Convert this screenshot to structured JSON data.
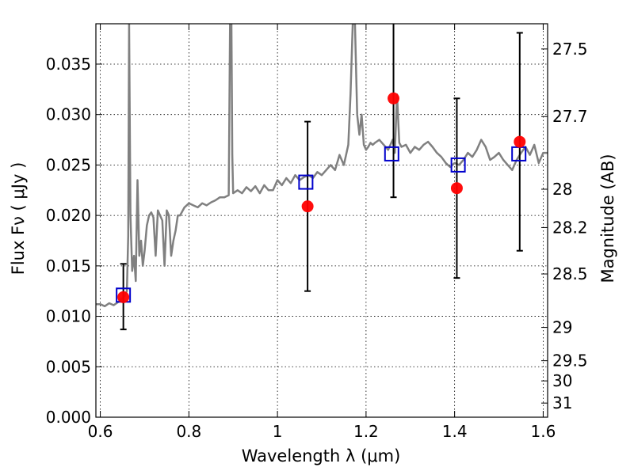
{
  "chart_data": {
    "type": "scatter",
    "title": "",
    "xlabel": "Wavelength  λ (μm)",
    "ylabel": "Flux  Fν  ( μJy )",
    "y2label": "Magnitude (AB)",
    "xlim": [
      0.59,
      1.61
    ],
    "ylim": [
      0.0,
      0.039
    ],
    "grid": true,
    "x_ticks": [
      0.6,
      0.8,
      1.0,
      1.2,
      1.4,
      1.6
    ],
    "x_tick_labels": [
      "0.6",
      "0.8",
      "1",
      "1.2",
      "1.4",
      "1.6"
    ],
    "y_ticks": [
      0.0,
      0.005,
      0.01,
      0.015,
      0.02,
      0.025,
      0.03,
      0.035
    ],
    "y_tick_labels": [
      "0.000",
      "0.005",
      "0.010",
      "0.015",
      "0.020",
      "0.025",
      "0.030",
      "0.035"
    ],
    "y2_ticks": [
      {
        "label": "27.5",
        "flux": 0.0365
      },
      {
        "label": "27.7",
        "flux": 0.0298
      },
      {
        "label": "28",
        "flux": 0.0226
      },
      {
        "label": "28.2",
        "flux": 0.0188
      },
      {
        "label": "28.5",
        "flux": 0.0142
      },
      {
        "label": "29",
        "flux": 0.0089
      },
      {
        "label": "29.5",
        "flux": 0.0056
      },
      {
        "label": "30",
        "flux": 0.0036
      },
      {
        "label": "31",
        "flux": 0.0014
      }
    ],
    "series": [
      {
        "kind": "line",
        "color": "#808080",
        "x": [
          0.59,
          0.6,
          0.61,
          0.62,
          0.63,
          0.64,
          0.65,
          0.655,
          0.66,
          0.663,
          0.665,
          0.668,
          0.672,
          0.676,
          0.68,
          0.684,
          0.688,
          0.692,
          0.696,
          0.7,
          0.705,
          0.71,
          0.715,
          0.72,
          0.725,
          0.73,
          0.735,
          0.74,
          0.745,
          0.75,
          0.755,
          0.76,
          0.765,
          0.77,
          0.775,
          0.78,
          0.79,
          0.8,
          0.81,
          0.82,
          0.83,
          0.84,
          0.85,
          0.86,
          0.87,
          0.88,
          0.89,
          0.893,
          0.896,
          0.898,
          0.9,
          0.91,
          0.92,
          0.93,
          0.94,
          0.95,
          0.96,
          0.97,
          0.98,
          0.99,
          1.0,
          1.01,
          1.02,
          1.03,
          1.04,
          1.05,
          1.06,
          1.07,
          1.08,
          1.09,
          1.1,
          1.11,
          1.12,
          1.13,
          1.14,
          1.15,
          1.16,
          1.165,
          1.17,
          1.175,
          1.18,
          1.185,
          1.19,
          1.195,
          1.2,
          1.205,
          1.21,
          1.215,
          1.22,
          1.23,
          1.24,
          1.25,
          1.26,
          1.265,
          1.27,
          1.275,
          1.28,
          1.29,
          1.3,
          1.31,
          1.32,
          1.33,
          1.34,
          1.35,
          1.36,
          1.37,
          1.38,
          1.39,
          1.4,
          1.41,
          1.42,
          1.43,
          1.44,
          1.45,
          1.46,
          1.47,
          1.48,
          1.49,
          1.5,
          1.51,
          1.52,
          1.53,
          1.54,
          1.55,
          1.56,
          1.57,
          1.58,
          1.59,
          1.6,
          1.61
        ],
        "y": [
          0.0112,
          0.0112,
          0.011,
          0.0113,
          0.0111,
          0.0114,
          0.0118,
          0.012,
          0.0125,
          0.018,
          0.039,
          0.02,
          0.0145,
          0.016,
          0.0135,
          0.0235,
          0.016,
          0.0175,
          0.015,
          0.0165,
          0.019,
          0.02,
          0.0203,
          0.0198,
          0.016,
          0.0205,
          0.02,
          0.0195,
          0.015,
          0.0205,
          0.02,
          0.016,
          0.0175,
          0.0185,
          0.02,
          0.02,
          0.0208,
          0.0212,
          0.021,
          0.0208,
          0.0212,
          0.021,
          0.0213,
          0.0215,
          0.0218,
          0.0218,
          0.022,
          0.039,
          0.039,
          0.026,
          0.0222,
          0.0225,
          0.0222,
          0.0228,
          0.0224,
          0.0229,
          0.0222,
          0.023,
          0.0225,
          0.0225,
          0.0235,
          0.023,
          0.0237,
          0.0232,
          0.024,
          0.0235,
          0.0238,
          0.024,
          0.0237,
          0.0243,
          0.024,
          0.0245,
          0.025,
          0.0245,
          0.026,
          0.025,
          0.027,
          0.032,
          0.039,
          0.039,
          0.03,
          0.028,
          0.03,
          0.027,
          0.0265,
          0.0268,
          0.0272,
          0.027,
          0.0272,
          0.0275,
          0.027,
          0.0265,
          0.0275,
          0.0262,
          0.032,
          0.0272,
          0.0268,
          0.027,
          0.0262,
          0.0268,
          0.0265,
          0.027,
          0.0273,
          0.0268,
          0.0262,
          0.0258,
          0.0252,
          0.0248,
          0.0252,
          0.025,
          0.0255,
          0.0262,
          0.0258,
          0.0265,
          0.0275,
          0.0268,
          0.0255,
          0.0258,
          0.0262,
          0.0255,
          0.025,
          0.0245,
          0.0255,
          0.0262,
          0.0268,
          0.026,
          0.027,
          0.0252,
          0.0262,
          0.0262
        ]
      },
      {
        "kind": "errorbar",
        "color": "#000000",
        "points": [
          {
            "x": 0.652,
            "low": 0.0087,
            "high": 0.0152
          },
          {
            "x": 1.068,
            "low": 0.0125,
            "high": 0.0293
          },
          {
            "x": 1.262,
            "low": 0.0218,
            "high": 0.04
          },
          {
            "x": 1.405,
            "low": 0.0138,
            "high": 0.0316
          },
          {
            "x": 1.547,
            "low": 0.0165,
            "high": 0.0381
          }
        ]
      },
      {
        "kind": "square-markers",
        "color": "#0000cc",
        "x": [
          0.652,
          1.064,
          1.258,
          1.408,
          1.545
        ],
        "y": [
          0.0121,
          0.0233,
          0.0261,
          0.025,
          0.0261
        ]
      },
      {
        "kind": "circle-markers",
        "color": "#ff0000",
        "x": [
          0.652,
          1.068,
          1.262,
          1.405,
          1.547
        ],
        "y": [
          0.0119,
          0.0209,
          0.0316,
          0.0227,
          0.0273
        ]
      }
    ]
  }
}
